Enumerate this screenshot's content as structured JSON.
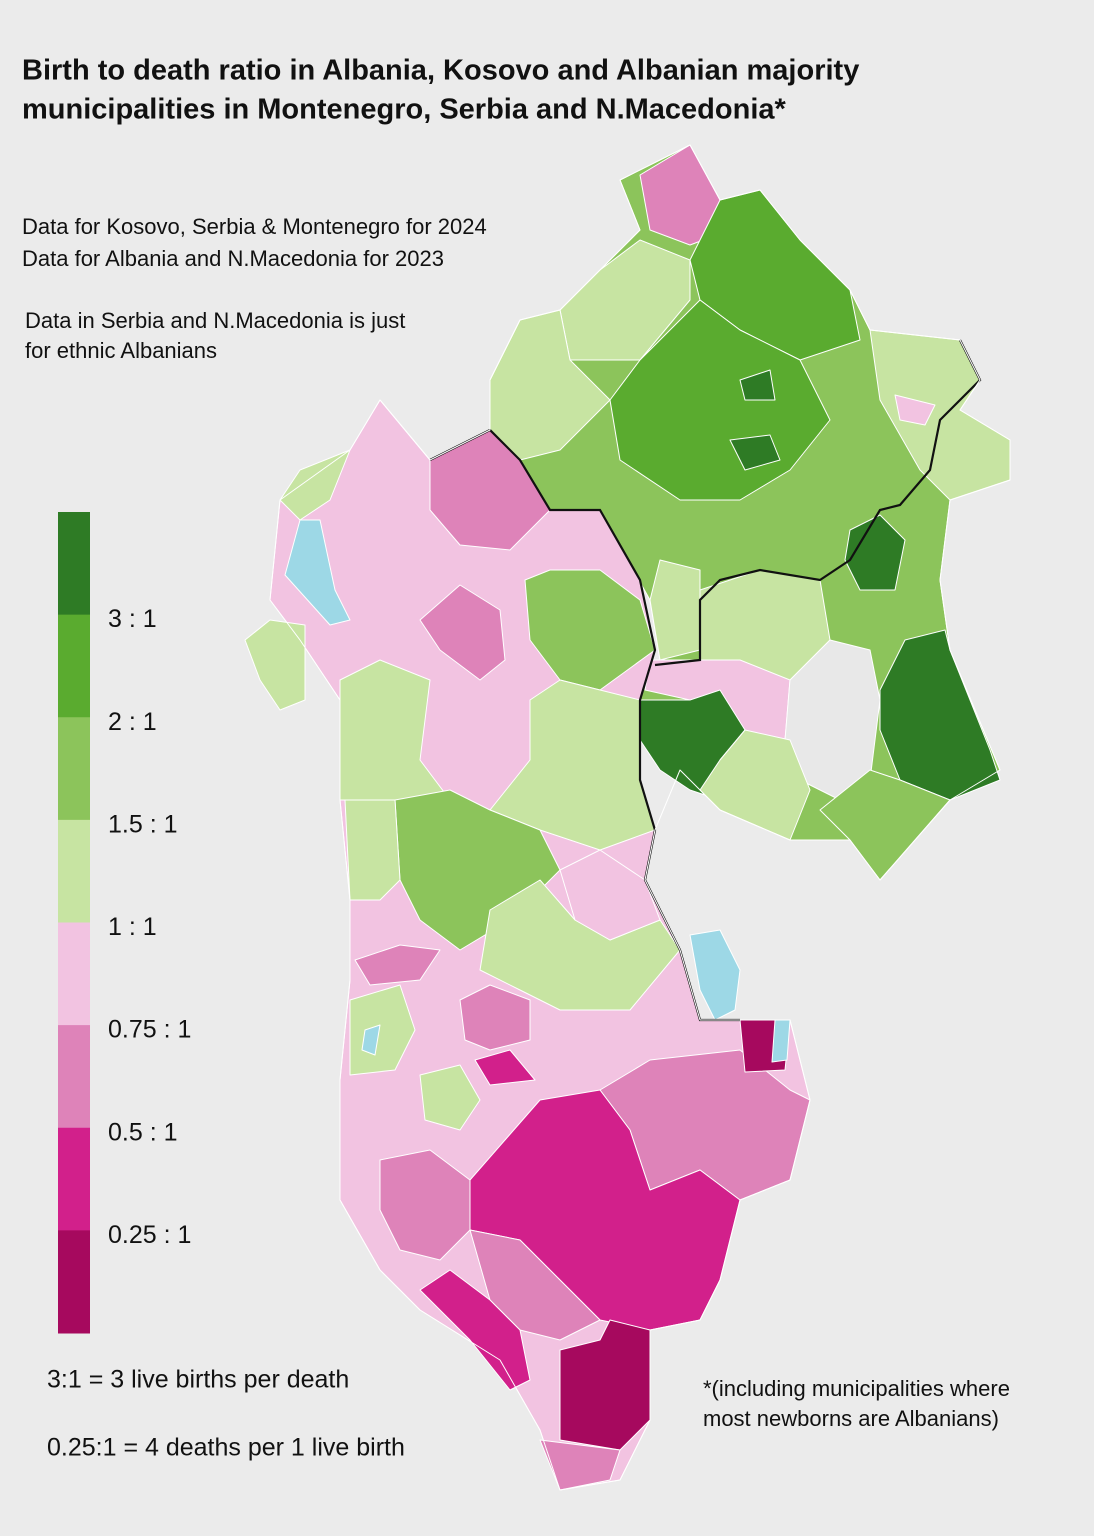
{
  "title": [
    "Birth to death ratio in Albania, Kosovo and Albanian majority",
    "municipalities in Montenegro, Serbia and N.Macedonia*"
  ],
  "notes": [
    "Data for Kosovo, Serbia & Montenegro for 2024",
    "Data for Albania and N.Macedonia for 2023"
  ],
  "scope_note": [
    "Data in Serbia and N.Macedonia is just",
    "for ethnic Albanians"
  ],
  "legend": {
    "colors": [
      "#2e7b25",
      "#5aab2f",
      "#8cc45b",
      "#c7e4a2",
      "#f2c3e1",
      "#de83b9",
      "#d2208b",
      "#a6095e"
    ],
    "labels": [
      "3 : 1",
      "2 : 1",
      "1.5 : 1",
      "1 : 1",
      "0.75 : 1",
      "0.5 : 1",
      "0.25 : 1"
    ]
  },
  "explanations": [
    "3:1 = 3 live births per death",
    "0.25:1 = 4 deaths per 1 live birth"
  ],
  "footnote": [
    "*(including municipalities where",
    "most newborns are Albanians)"
  ]
}
